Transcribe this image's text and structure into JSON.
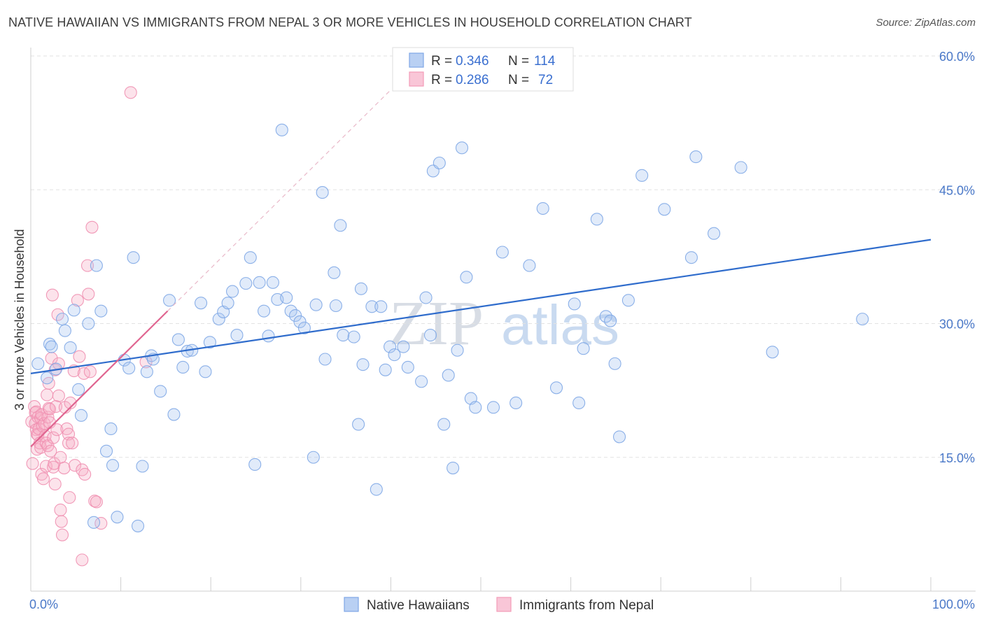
{
  "title": "NATIVE HAWAIIAN VS IMMIGRANTS FROM NEPAL 3 OR MORE VEHICLES IN HOUSEHOLD CORRELATION CHART",
  "source": "Source: ZipAtlas.com",
  "watermark": {
    "zip": "ZIP",
    "atlas": "atlas"
  },
  "legend": {
    "items": [
      {
        "r_label": "R =",
        "r_value": "0.346",
        "n_label": "N =",
        "n_value": "114"
      },
      {
        "r_label": "R =",
        "r_value": "0.286",
        "n_label": "N =",
        "n_value": "72"
      }
    ]
  },
  "chart_data": {
    "type": "scatter",
    "title": "NATIVE HAWAIIAN VS IMMIGRANTS FROM NEPAL 3 OR MORE VEHICLES IN HOUSEHOLD CORRELATION CHART",
    "xlabel": "",
    "ylabel": "3 or more Vehicles in Household",
    "xlim": [
      0,
      100
    ],
    "ylim": [
      0,
      60
    ],
    "x_tick_labels": [
      "0.0%",
      "100.0%"
    ],
    "y_ticks": [
      15,
      30,
      45,
      60
    ],
    "y_tick_labels": [
      "15.0%",
      "30.0%",
      "45.0%",
      "60.0%"
    ],
    "grid": true,
    "legend_position": "bottom",
    "series": [
      {
        "name": "Native Hawaiians",
        "color": "#7ea7e6",
        "line_color": "#2f6ccc",
        "trend": [
          [
            0,
            24.4
          ],
          [
            100,
            39.4
          ]
        ],
        "points": [
          [
            0.8,
            25.5
          ],
          [
            1.8,
            23.9
          ],
          [
            2.1,
            27.7
          ],
          [
            2.3,
            27.4
          ],
          [
            2.8,
            24.9
          ],
          [
            3.5,
            30.5
          ],
          [
            3.8,
            29.2
          ],
          [
            4.4,
            27.3
          ],
          [
            4.8,
            31.5
          ],
          [
            5.3,
            22.6
          ],
          [
            5.6,
            19.7
          ],
          [
            6.4,
            30.0
          ],
          [
            7.0,
            7.7
          ],
          [
            7.3,
            36.5
          ],
          [
            7.8,
            31.4
          ],
          [
            8.4,
            15.7
          ],
          [
            8.9,
            18.2
          ],
          [
            9.1,
            14.1
          ],
          [
            9.6,
            8.3
          ],
          [
            10.4,
            25.9
          ],
          [
            10.9,
            25.0
          ],
          [
            11.4,
            37.4
          ],
          [
            11.9,
            7.3
          ],
          [
            12.4,
            14.0
          ],
          [
            12.9,
            24.6
          ],
          [
            13.4,
            26.4
          ],
          [
            13.6,
            26.0
          ],
          [
            14.4,
            22.4
          ],
          [
            15.4,
            32.6
          ],
          [
            15.9,
            19.8
          ],
          [
            16.4,
            28.2
          ],
          [
            16.9,
            25.1
          ],
          [
            17.4,
            26.9
          ],
          [
            17.9,
            27.0
          ],
          [
            18.9,
            32.3
          ],
          [
            19.4,
            24.6
          ],
          [
            19.9,
            27.9
          ],
          [
            20.9,
            30.5
          ],
          [
            21.4,
            31.3
          ],
          [
            21.9,
            32.3
          ],
          [
            22.4,
            33.6
          ],
          [
            22.9,
            28.7
          ],
          [
            23.9,
            34.5
          ],
          [
            24.4,
            37.4
          ],
          [
            24.9,
            14.2
          ],
          [
            25.4,
            34.6
          ],
          [
            25.9,
            31.4
          ],
          [
            26.4,
            28.6
          ],
          [
            26.9,
            34.6
          ],
          [
            27.4,
            32.7
          ],
          [
            27.9,
            51.7
          ],
          [
            28.4,
            32.9
          ],
          [
            28.9,
            31.4
          ],
          [
            29.4,
            30.9
          ],
          [
            29.9,
            30.2
          ],
          [
            30.4,
            29.5
          ],
          [
            31.4,
            15.0
          ],
          [
            31.7,
            32.1
          ],
          [
            32.4,
            44.7
          ],
          [
            32.7,
            26.0
          ],
          [
            33.7,
            35.7
          ],
          [
            33.9,
            32.0
          ],
          [
            34.4,
            41.0
          ],
          [
            34.7,
            28.7
          ],
          [
            35.9,
            28.5
          ],
          [
            36.4,
            18.7
          ],
          [
            36.7,
            33.9
          ],
          [
            36.9,
            25.4
          ],
          [
            37.9,
            31.9
          ],
          [
            38.4,
            11.4
          ],
          [
            38.9,
            31.9
          ],
          [
            39.4,
            24.8
          ],
          [
            39.9,
            27.4
          ],
          [
            40.4,
            26.5
          ],
          [
            41.4,
            27.4
          ],
          [
            41.9,
            25.1
          ],
          [
            43.4,
            23.5
          ],
          [
            43.9,
            32.9
          ],
          [
            44.4,
            28.7
          ],
          [
            44.7,
            47.1
          ],
          [
            45.4,
            48.0
          ],
          [
            45.9,
            18.7
          ],
          [
            46.4,
            24.2
          ],
          [
            46.9,
            13.8
          ],
          [
            47.4,
            27.0
          ],
          [
            47.9,
            49.7
          ],
          [
            48.4,
            35.2
          ],
          [
            48.9,
            21.6
          ],
          [
            49.4,
            20.6
          ],
          [
            51.4,
            20.6
          ],
          [
            52.4,
            38.0
          ],
          [
            53.9,
            21.1
          ],
          [
            55.4,
            36.5
          ],
          [
            56.9,
            42.9
          ],
          [
            58.4,
            22.8
          ],
          [
            60.4,
            32.2
          ],
          [
            60.9,
            21.1
          ],
          [
            61.4,
            27.2
          ],
          [
            62.9,
            41.7
          ],
          [
            63.9,
            30.8
          ],
          [
            64.4,
            30.3
          ],
          [
            64.9,
            25.5
          ],
          [
            65.4,
            17.3
          ],
          [
            66.4,
            32.6
          ],
          [
            67.9,
            46.6
          ],
          [
            70.4,
            42.8
          ],
          [
            73.4,
            37.4
          ],
          [
            73.9,
            48.7
          ],
          [
            75.9,
            40.1
          ],
          [
            78.9,
            47.5
          ],
          [
            82.4,
            26.8
          ],
          [
            92.4,
            30.5
          ]
        ]
      },
      {
        "name": "Immigrants from Nepal",
        "color": "#f29bb8",
        "line_color": "#e06590",
        "trend": [
          [
            0,
            16.2
          ],
          [
            15.2,
            31.4
          ]
        ],
        "trend_extension": [
          [
            15.2,
            31.4
          ],
          [
            40.0,
            56.2
          ]
        ],
        "points": [
          [
            0.1,
            19.0
          ],
          [
            0.2,
            14.3
          ],
          [
            0.4,
            20.7
          ],
          [
            0.5,
            20.0
          ],
          [
            0.5,
            18.8
          ],
          [
            0.6,
            20.1
          ],
          [
            0.6,
            18.1
          ],
          [
            0.7,
            17.6
          ],
          [
            0.7,
            15.9
          ],
          [
            0.8,
            19.5
          ],
          [
            0.8,
            17.5
          ],
          [
            0.9,
            18.2
          ],
          [
            1.0,
            16.6
          ],
          [
            1.1,
            19.4
          ],
          [
            1.1,
            16.1
          ],
          [
            1.2,
            13.1
          ],
          [
            1.2,
            19.8
          ],
          [
            1.3,
            18.5
          ],
          [
            1.4,
            12.6
          ],
          [
            1.5,
            18.8
          ],
          [
            1.6,
            17.4
          ],
          [
            1.7,
            16.6
          ],
          [
            1.7,
            14.0
          ],
          [
            1.8,
            22.0
          ],
          [
            1.9,
            19.5
          ],
          [
            1.9,
            16.3
          ],
          [
            2.0,
            23.3
          ],
          [
            2.0,
            20.5
          ],
          [
            2.1,
            18.9
          ],
          [
            2.1,
            20.4
          ],
          [
            2.2,
            15.7
          ],
          [
            2.3,
            26.1
          ],
          [
            2.4,
            33.2
          ],
          [
            2.5,
            13.9
          ],
          [
            2.5,
            17.2
          ],
          [
            2.6,
            14.3
          ],
          [
            2.7,
            12.0
          ],
          [
            2.7,
            24.8
          ],
          [
            2.8,
            20.7
          ],
          [
            2.9,
            18.1
          ],
          [
            3.0,
            31.0
          ],
          [
            3.1,
            25.5
          ],
          [
            3.1,
            21.9
          ],
          [
            3.3,
            9.1
          ],
          [
            3.3,
            15.0
          ],
          [
            3.4,
            7.8
          ],
          [
            3.5,
            6.3
          ],
          [
            3.7,
            13.8
          ],
          [
            3.8,
            20.6
          ],
          [
            4.0,
            18.2
          ],
          [
            4.2,
            17.6
          ],
          [
            4.2,
            16.6
          ],
          [
            4.3,
            10.5
          ],
          [
            4.4,
            21.1
          ],
          [
            4.6,
            16.6
          ],
          [
            4.8,
            24.7
          ],
          [
            4.9,
            14.1
          ],
          [
            5.2,
            32.6
          ],
          [
            5.4,
            26.3
          ],
          [
            5.7,
            3.5
          ],
          [
            5.7,
            13.6
          ],
          [
            5.9,
            24.4
          ],
          [
            6.0,
            13.1
          ],
          [
            6.3,
            36.5
          ],
          [
            6.4,
            33.3
          ],
          [
            6.6,
            24.6
          ],
          [
            6.8,
            40.8
          ],
          [
            7.1,
            10.1
          ],
          [
            7.3,
            10.0
          ],
          [
            7.8,
            7.6
          ],
          [
            11.1,
            55.9
          ],
          [
            12.8,
            25.7
          ]
        ]
      }
    ]
  }
}
